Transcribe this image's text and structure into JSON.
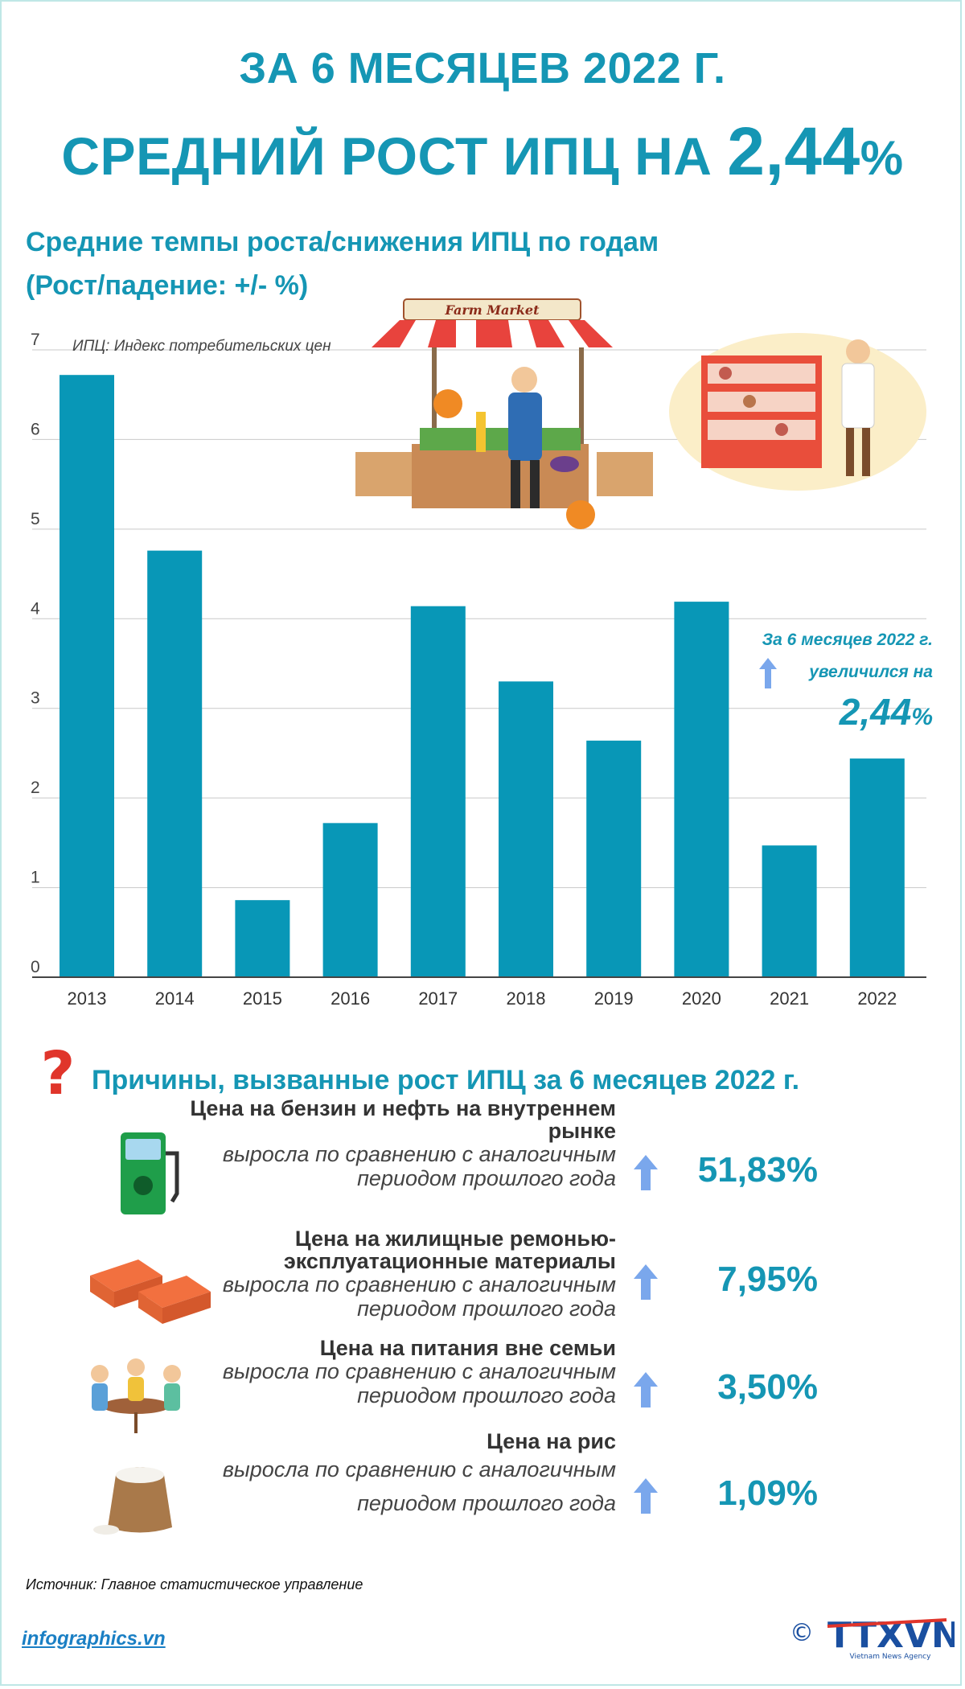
{
  "header": {
    "line1": "ЗА 6 МЕСЯЦЕВ 2022 Г.",
    "line2_text": "СРЕДНИЙ РОСТ ИПЦ НА",
    "line2_value": "2,44",
    "line2_unit": "%"
  },
  "section1": {
    "title_line1": "Средние темпы роста/снижения ИПЦ по годам",
    "title_line2": "(Рост/падение: +/- %)",
    "cpi_note": "ИПЦ: Индекс потребительских цен"
  },
  "illustrations": {
    "market_sign": "Farm Market"
  },
  "chart_data": {
    "type": "bar",
    "categories": [
      "2013",
      "2014",
      "2015",
      "2016",
      "2017",
      "2018",
      "2019",
      "2020",
      "2021",
      "2022"
    ],
    "values": [
      6.72,
      4.76,
      0.86,
      1.72,
      4.14,
      3.3,
      2.64,
      4.19,
      1.47,
      2.44
    ],
    "ylim": [
      0,
      7
    ],
    "yticks": [
      0,
      1,
      2,
      3,
      4,
      5,
      6,
      7
    ],
    "xlabel": "",
    "ylabel": "",
    "grid": true,
    "bar_color": "#0897b7"
  },
  "callout": {
    "line1": "За 6 месяцев 2022 г.",
    "line2": "увеличился на",
    "value": "2,44",
    "unit": "%"
  },
  "reasons": {
    "title": "Причины, вызванные рост ИПЦ за 6 месяцев 2022 г.",
    "items": [
      {
        "head": "Цена на бензин и нефть на внутреннем рынке",
        "desc": "выросла по сравнению с аналогичным периодом прошлого года",
        "value": "51,83%",
        "icon": "fuel-pump-icon"
      },
      {
        "head": "Цена на жилищные ремонью-эксплуатационные материалы",
        "desc": "выросла по сравнению с аналогичным периодом прошлого года",
        "value": "7,95%",
        "icon": "bricks-icon"
      },
      {
        "head": "Цена на питания вне семьи",
        "desc": "выросла по сравнению с аналогичным периодом прошлого года",
        "value": "3,50%",
        "icon": "dining-people-icon"
      },
      {
        "head": "Цена на рис",
        "desc": "выросла по сравнению с аналогичным периодом прошлого года",
        "value": "1,09%",
        "icon": "rice-sack-icon"
      }
    ]
  },
  "footer": {
    "source": "Источник: Главное статистическое управление",
    "site": "infographics.vn",
    "logo_text": "TTXVN",
    "logo_sub": "Vietnam News Agency",
    "copyright": "©"
  },
  "colors": {
    "accent": "#1596b4",
    "bar": "#0897b7",
    "arrow": "#7aa7ec"
  }
}
